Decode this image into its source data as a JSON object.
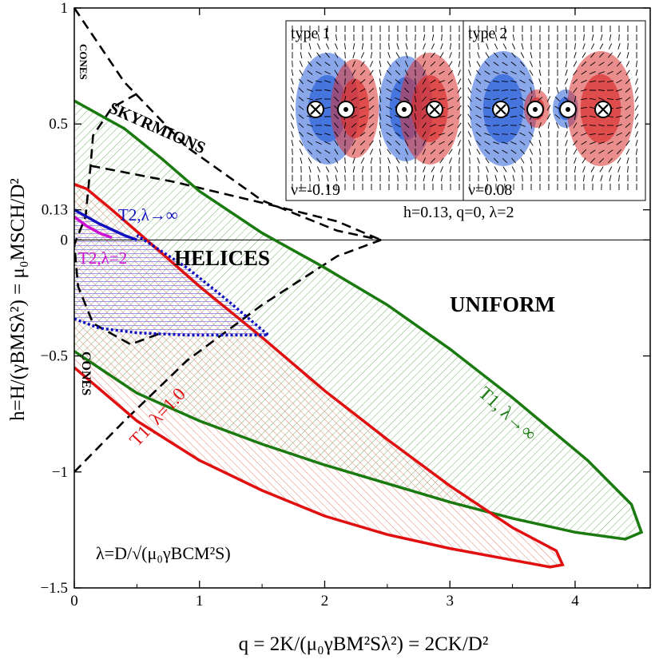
{
  "chart_data": {
    "type": "line",
    "title": "",
    "xlabel": "q = 2K/(μ₀γBM²Sλ²) = 2CK/D²",
    "ylabel": "h=H/(γBMSλ²) = μ₀MSCH/D²",
    "xlim": [
      0,
      4.6
    ],
    "ylim": [
      -1.5,
      1
    ],
    "x_ticks": [
      0,
      1,
      2,
      3,
      4
    ],
    "x_tick_labels": [
      "0",
      "1",
      "2",
      "3",
      "4"
    ],
    "y_ticks": [
      -1.5,
      -1,
      -0.5,
      0,
      0.13,
      0.5,
      1
    ],
    "y_tick_labels": [
      "−1.5",
      "−1",
      "−0.5",
      "0",
      "0.13",
      "0.5",
      "1"
    ],
    "grid": false,
    "legend": "none",
    "regions": [
      {
        "name": "cones-top",
        "label": "CONES"
      },
      {
        "name": "skyrmions",
        "label": "SKYRMIONS"
      },
      {
        "name": "helices",
        "label": "HELICES"
      },
      {
        "name": "uniform",
        "label": "UNIFORM"
      },
      {
        "name": "cones-bottom",
        "label": "CONES"
      }
    ],
    "series": [
      {
        "name": "T1, λ→∞",
        "color": "#1a7a10",
        "points": [
          [
            0,
            -0.48
          ],
          [
            0.5,
            -0.66
          ],
          [
            1,
            -0.78
          ],
          [
            1.5,
            -0.88
          ],
          [
            2,
            -0.97
          ],
          [
            2.5,
            -1.05
          ],
          [
            3,
            -1.13
          ],
          [
            3.5,
            -1.2
          ],
          [
            4,
            -1.26
          ],
          [
            4.4,
            -1.29
          ],
          [
            4.53,
            -1.26
          ],
          [
            4.45,
            -1.14
          ],
          [
            4.1,
            -0.95
          ],
          [
            3.5,
            -0.68
          ],
          [
            3,
            -0.47
          ],
          [
            2.5,
            -0.28
          ],
          [
            2,
            -0.12
          ],
          [
            1.5,
            0.03
          ],
          [
            1,
            0.21
          ],
          [
            0.7,
            0.35
          ],
          [
            0.4,
            0.48
          ],
          [
            0,
            0.6
          ]
        ]
      },
      {
        "name": "T1, λ=1.0",
        "color": "#e01010",
        "points": [
          [
            0,
            -0.55
          ],
          [
            0.5,
            -0.78
          ],
          [
            1,
            -0.95
          ],
          [
            1.5,
            -1.08
          ],
          [
            2,
            -1.19
          ],
          [
            2.5,
            -1.27
          ],
          [
            3,
            -1.33
          ],
          [
            3.5,
            -1.38
          ],
          [
            3.8,
            -1.41
          ],
          [
            3.9,
            -1.4
          ],
          [
            3.85,
            -1.34
          ],
          [
            3.5,
            -1.24
          ],
          [
            3,
            -1.06
          ],
          [
            2.5,
            -0.86
          ],
          [
            2,
            -0.65
          ],
          [
            1.5,
            -0.42
          ],
          [
            1,
            -0.2
          ],
          [
            0.6,
            -0.01
          ],
          [
            0.3,
            0.13
          ],
          [
            0.1,
            0.22
          ],
          [
            0,
            0.24
          ]
        ]
      },
      {
        "name": "T2, λ→∞",
        "color": "#1010c0",
        "points": [
          [
            0,
            0.13
          ],
          [
            0.2,
            0.07
          ],
          [
            0.4,
            0.02
          ],
          [
            0.5,
            0
          ]
        ],
        "dotted_boundary": [
          [
            0,
            -0.34
          ],
          [
            0.2,
            -0.38
          ],
          [
            0.5,
            -0.4
          ],
          [
            0.9,
            -0.41
          ],
          [
            1.55,
            -0.41
          ],
          [
            1.2,
            -0.25
          ],
          [
            0.9,
            -0.12
          ],
          [
            0.5,
            0.02
          ]
        ]
      },
      {
        "name": "T2,λ=2",
        "color": "#d010d0",
        "points": [
          [
            0,
            0.1
          ],
          [
            0.1,
            0.06
          ],
          [
            0.2,
            0.03
          ],
          [
            0.3,
            0.01
          ]
        ]
      }
    ],
    "phase_boundaries": {
      "cones_top": [
        [
          0,
          1
        ],
        [
          0.4,
          0.68
        ],
        [
          0.9,
          0.4
        ],
        [
          1.5,
          0.17
        ],
        [
          2.1,
          0.04
        ],
        [
          2.45,
          0
        ]
      ],
      "cones_bottom": [
        [
          0,
          -1
        ],
        [
          0.4,
          -0.78
        ],
        [
          0.9,
          -0.52
        ],
        [
          1.5,
          -0.28
        ],
        [
          2.1,
          -0.07
        ],
        [
          2.45,
          0
        ]
      ],
      "skyrmion_pocket": [
        [
          0.5,
          0.63
        ],
        [
          0.3,
          0.57
        ],
        [
          0.15,
          0.45
        ],
        [
          0.13,
          0.32
        ],
        [
          0.09,
          0.1
        ],
        [
          0,
          -0.02
        ],
        [
          0.03,
          -0.2
        ],
        [
          0.15,
          -0.36
        ],
        [
          0.45,
          -0.45
        ],
        [
          0.7,
          -0.4
        ]
      ],
      "skyrmion_upper": [
        [
          0.13,
          0.32
        ],
        [
          0.8,
          0.25
        ],
        [
          1.5,
          0.16
        ],
        [
          2.1,
          0.08
        ],
        [
          2.45,
          0
        ]
      ]
    },
    "annotations": {
      "formula": "λ=D/√(μ₀γBCM²S)",
      "t1_inf": "T1, λ→∞",
      "t1_one": "T1, λ=1.0",
      "t2_inf": "T2,λ→∞",
      "t2_two": "T2,λ=2"
    },
    "inset": {
      "panels": [
        {
          "label": "type 1",
          "nu": "ν=-0.19",
          "markers": [
            [
              "cross",
              "blue-side"
            ],
            [
              "dot",
              "red"
            ],
            [
              "dot",
              "blue"
            ],
            [
              "cross",
              "red-side"
            ]
          ]
        },
        {
          "label": "type 2",
          "nu": "ν=0.08",
          "markers": [
            [
              "cross",
              "blue-side"
            ],
            [
              "dot",
              "red"
            ],
            [
              "dot",
              "blue"
            ],
            [
              "cross",
              "red-side"
            ]
          ]
        }
      ],
      "caption": "h=0.13, q=0, λ=2"
    }
  }
}
